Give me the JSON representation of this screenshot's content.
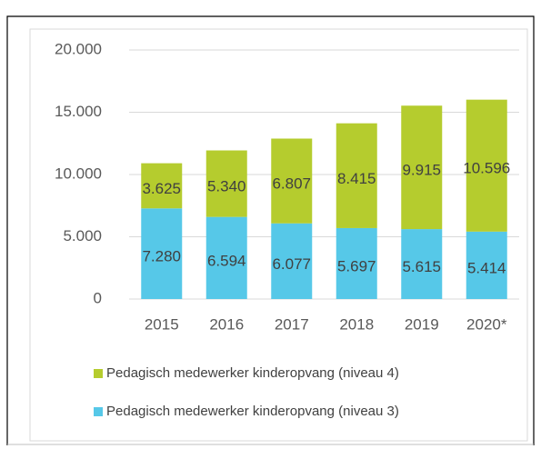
{
  "chart_data": {
    "type": "stacked_bar",
    "categories": [
      "2015",
      "2016",
      "2017",
      "2018",
      "2019",
      "2020*"
    ],
    "series": [
      {
        "name": "Pedagisch medewerker kinderopvang (niveau 3)",
        "color": "#56c8e8",
        "values": [
          7280,
          6594,
          6077,
          5697,
          5615,
          5414
        ],
        "value_labels": [
          "7.280",
          "6.594",
          "6.077",
          "5.697",
          "5.615",
          "5.414"
        ]
      },
      {
        "name": "Pedagisch medewerker kinderopvang (niveau 4)",
        "color": "#b5cc2e",
        "values": [
          3625,
          5340,
          6807,
          8415,
          9915,
          10596
        ],
        "value_labels": [
          "3.625",
          "5.340",
          "6.807",
          "8.415",
          "9.915",
          "10.596"
        ]
      }
    ],
    "ylim": [
      0,
      20000
    ],
    "yticks": [
      0,
      {
        "value": 5000,
        "label": "5.000"
      },
      {
        "value": 10000,
        "label": "10.000"
      },
      {
        "value": 15000,
        "label": "15.000"
      },
      {
        "value": 20000,
        "label": "20.000"
      }
    ],
    "grid": true,
    "legend": "bottom"
  }
}
